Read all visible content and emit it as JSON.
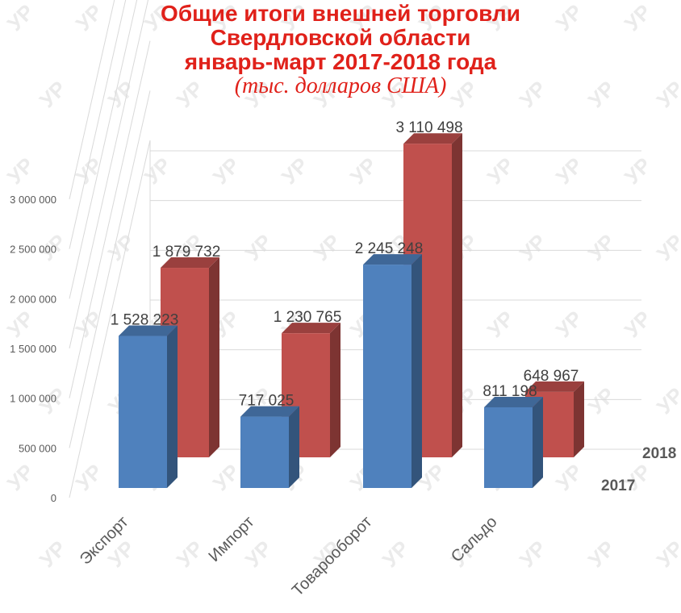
{
  "title": {
    "line1": "Общие итоги внешней торговли",
    "line2": "Свердловской области",
    "line3": "январь-март 2017-2018 года",
    "line4": "(тыс. долларов США)"
  },
  "watermark": "УР",
  "colors": {
    "title": "#e0211a",
    "series_2017": "#4f81bd",
    "series_2018": "#c0504d"
  },
  "chart_data": {
    "type": "bar",
    "categories": [
      "Экспорт",
      "Импорт",
      "Товарооборот",
      "Сальдо"
    ],
    "series": [
      {
        "name": "2017",
        "values": [
          1528223,
          717025,
          2245248,
          811198
        ],
        "labels": [
          "1 528 223",
          "717 025",
          "2 245 248",
          "811 198"
        ]
      },
      {
        "name": "2018",
        "values": [
          1879732,
          1230765,
          3110498,
          648967
        ],
        "labels": [
          "1 879 732",
          "1 230 765",
          "3 110 498",
          "648 967"
        ]
      }
    ],
    "ylim": [
      0,
      3000000
    ],
    "yticks": [
      {
        "value": 0,
        "label": "0"
      },
      {
        "value": 500000,
        "label": "500 000"
      },
      {
        "value": 1000000,
        "label": "1 000 000"
      },
      {
        "value": 1500000,
        "label": "1 500 000"
      },
      {
        "value": 2000000,
        "label": "2 000 000"
      },
      {
        "value": 2500000,
        "label": "2 500 000"
      },
      {
        "value": 3000000,
        "label": "3 000 000"
      }
    ],
    "grid": true,
    "style": "3d-clustered"
  }
}
